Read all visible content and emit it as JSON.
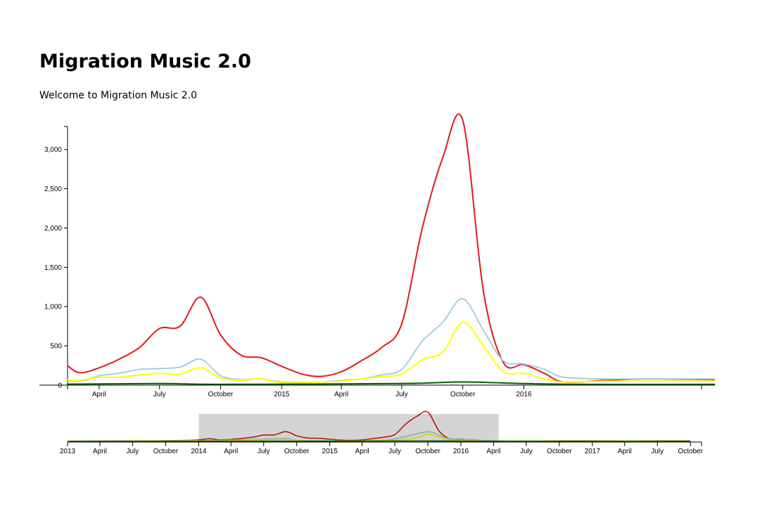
{
  "header": {
    "title": "Migration Music 2.0",
    "subtitle": "Welcome to Migration Music 2.0"
  },
  "chart_data": [
    {
      "type": "line",
      "x_start": "2014-01-01",
      "x_end": "2016-10-15",
      "ylim": [
        0,
        3400
      ],
      "y_ticks": [
        0,
        500,
        1000,
        1500,
        2000,
        2500,
        3000
      ],
      "x_ticks": [
        {
          "date": "2014-04-01",
          "label": "April"
        },
        {
          "date": "2014-07-01",
          "label": "July"
        },
        {
          "date": "2014-10-01",
          "label": "October"
        },
        {
          "date": "2015-01-01",
          "label": "2015"
        },
        {
          "date": "2015-04-01",
          "label": "April"
        },
        {
          "date": "2015-07-01",
          "label": "July"
        },
        {
          "date": "2015-10-01",
          "label": "October"
        },
        {
          "date": "2016-01-01",
          "label": "2016"
        }
      ],
      "series": [
        {
          "color": "#e31a1c",
          "points": [
            [
              "2014-01-01",
              170
            ],
            [
              "2014-01-31",
              300
            ],
            [
              "2014-03-01",
              160
            ],
            [
              "2014-04-01",
              220
            ],
            [
              "2014-05-01",
              330
            ],
            [
              "2014-06-01",
              480
            ],
            [
              "2014-07-01",
              720
            ],
            [
              "2014-08-01",
              750
            ],
            [
              "2014-09-01",
              1120
            ],
            [
              "2014-10-01",
              640
            ],
            [
              "2014-11-01",
              380
            ],
            [
              "2014-12-01",
              350
            ],
            [
              "2015-01-01",
              240
            ],
            [
              "2015-02-01",
              140
            ],
            [
              "2015-03-01",
              110
            ],
            [
              "2015-04-01",
              170
            ],
            [
              "2015-05-01",
              310
            ],
            [
              "2015-06-01",
              480
            ],
            [
              "2015-07-01",
              780
            ],
            [
              "2015-08-01",
              2000
            ],
            [
              "2015-09-01",
              2900
            ],
            [
              "2015-10-01",
              3370
            ],
            [
              "2015-11-01",
              1200
            ],
            [
              "2015-12-01",
              290
            ],
            [
              "2016-01-01",
              260
            ],
            [
              "2016-02-01",
              150
            ],
            [
              "2016-03-01",
              40
            ],
            [
              "2016-05-01",
              60
            ],
            [
              "2016-07-01",
              80
            ],
            [
              "2016-10-15",
              70
            ]
          ]
        },
        {
          "color": "#a6cee3",
          "points": [
            [
              "2014-01-01",
              80
            ],
            [
              "2014-03-01",
              50
            ],
            [
              "2014-04-01",
              120
            ],
            [
              "2014-05-01",
              150
            ],
            [
              "2014-06-01",
              200
            ],
            [
              "2014-07-01",
              210
            ],
            [
              "2014-08-01",
              230
            ],
            [
              "2014-09-01",
              330
            ],
            [
              "2014-10-01",
              120
            ],
            [
              "2014-11-01",
              70
            ],
            [
              "2014-12-01",
              80
            ],
            [
              "2015-01-01",
              40
            ],
            [
              "2015-03-01",
              40
            ],
            [
              "2015-04-01",
              60
            ],
            [
              "2015-05-01",
              80
            ],
            [
              "2015-06-01",
              130
            ],
            [
              "2015-07-01",
              200
            ],
            [
              "2015-08-01",
              560
            ],
            [
              "2015-09-01",
              800
            ],
            [
              "2015-10-01",
              1100
            ],
            [
              "2015-11-01",
              700
            ],
            [
              "2015-12-01",
              310
            ],
            [
              "2016-01-01",
              270
            ],
            [
              "2016-02-01",
              200
            ],
            [
              "2016-03-01",
              100
            ],
            [
              "2016-05-01",
              80
            ],
            [
              "2016-07-01",
              80
            ],
            [
              "2016-10-15",
              80
            ]
          ]
        },
        {
          "color": "#ffff00",
          "points": [
            [
              "2014-01-01",
              60
            ],
            [
              "2014-02-01",
              70
            ],
            [
              "2014-03-01",
              60
            ],
            [
              "2014-04-01",
              100
            ],
            [
              "2014-05-01",
              100
            ],
            [
              "2014-06-01",
              130
            ],
            [
              "2014-07-01",
              150
            ],
            [
              "2014-08-01",
              140
            ],
            [
              "2014-09-01",
              220
            ],
            [
              "2014-10-01",
              90
            ],
            [
              "2014-11-01",
              60
            ],
            [
              "2014-12-01",
              80
            ],
            [
              "2015-01-01",
              30
            ],
            [
              "2015-03-01",
              40
            ],
            [
              "2015-04-01",
              50
            ],
            [
              "2015-05-01",
              80
            ],
            [
              "2015-06-01",
              110
            ],
            [
              "2015-07-01",
              140
            ],
            [
              "2015-08-01",
              320
            ],
            [
              "2015-09-01",
              420
            ],
            [
              "2015-10-01",
              800
            ],
            [
              "2015-11-01",
              500
            ],
            [
              "2015-12-01",
              170
            ],
            [
              "2016-01-01",
              150
            ],
            [
              "2016-02-01",
              80
            ],
            [
              "2016-03-01",
              40
            ],
            [
              "2016-05-01",
              50
            ],
            [
              "2016-07-01",
              50
            ],
            [
              "2016-10-15",
              50
            ]
          ]
        },
        {
          "color": "#006400",
          "points": [
            [
              "2014-01-01",
              10
            ],
            [
              "2014-07-01",
              20
            ],
            [
              "2014-10-01",
              10
            ],
            [
              "2015-07-01",
              20
            ],
            [
              "2015-10-01",
              40
            ],
            [
              "2016-01-01",
              20
            ],
            [
              "2016-04-01",
              10
            ],
            [
              "2016-10-15",
              10
            ]
          ]
        }
      ]
    },
    {
      "type": "line",
      "x_start": "2013-01-01",
      "x_end": "2017-11-01",
      "ylim": [
        0,
        3400
      ],
      "brush_start": "2014-01-01",
      "brush_end": "2016-04-15",
      "x_ticks": [
        {
          "date": "2013-01-01",
          "label": "2013"
        },
        {
          "date": "2013-04-01",
          "label": "April"
        },
        {
          "date": "2013-07-01",
          "label": "July"
        },
        {
          "date": "2013-10-01",
          "label": "October"
        },
        {
          "date": "2014-01-01",
          "label": "2014"
        },
        {
          "date": "2014-04-01",
          "label": "April"
        },
        {
          "date": "2014-07-01",
          "label": "July"
        },
        {
          "date": "2014-10-01",
          "label": "October"
        },
        {
          "date": "2015-01-01",
          "label": "2015"
        },
        {
          "date": "2015-04-01",
          "label": "April"
        },
        {
          "date": "2015-07-01",
          "label": "July"
        },
        {
          "date": "2015-10-01",
          "label": "October"
        },
        {
          "date": "2016-01-01",
          "label": "2016"
        },
        {
          "date": "2016-04-01",
          "label": "April"
        },
        {
          "date": "2016-07-01",
          "label": "July"
        },
        {
          "date": "2016-10-01",
          "label": "October"
        },
        {
          "date": "2017-01-01",
          "label": "2017"
        },
        {
          "date": "2017-04-01",
          "label": "April"
        },
        {
          "date": "2017-07-01",
          "label": "July"
        },
        {
          "date": "2017-10-01",
          "label": "October"
        }
      ],
      "series": [
        {
          "color": "#e31a1c",
          "points": [
            [
              "2013-01-01",
              20
            ],
            [
              "2013-07-01",
              60
            ],
            [
              "2013-10-01",
              80
            ],
            [
              "2014-01-01",
              170
            ],
            [
              "2014-01-31",
              300
            ],
            [
              "2014-03-01",
              160
            ],
            [
              "2014-04-01",
              220
            ],
            [
              "2014-05-01",
              330
            ],
            [
              "2014-06-01",
              480
            ],
            [
              "2014-07-01",
              720
            ],
            [
              "2014-08-01",
              750
            ],
            [
              "2014-09-01",
              1120
            ],
            [
              "2014-10-01",
              640
            ],
            [
              "2014-11-01",
              380
            ],
            [
              "2014-12-01",
              350
            ],
            [
              "2015-01-01",
              240
            ],
            [
              "2015-02-01",
              140
            ],
            [
              "2015-03-01",
              110
            ],
            [
              "2015-04-01",
              170
            ],
            [
              "2015-05-01",
              310
            ],
            [
              "2015-06-01",
              480
            ],
            [
              "2015-07-01",
              780
            ],
            [
              "2015-08-01",
              2000
            ],
            [
              "2015-09-01",
              2900
            ],
            [
              "2015-10-01",
              3370
            ],
            [
              "2015-11-01",
              1200
            ],
            [
              "2015-12-01",
              290
            ],
            [
              "2016-01-01",
              260
            ],
            [
              "2016-02-01",
              150
            ],
            [
              "2016-03-01",
              40
            ],
            [
              "2016-05-01",
              60
            ],
            [
              "2016-07-01",
              60
            ],
            [
              "2016-10-01",
              70
            ],
            [
              "2017-01-01",
              80
            ],
            [
              "2017-04-01",
              60
            ],
            [
              "2017-07-01",
              80
            ],
            [
              "2017-10-01",
              80
            ]
          ]
        },
        {
          "color": "#a6cee3",
          "points": [
            [
              "2013-01-01",
              20
            ],
            [
              "2014-01-01",
              80
            ],
            [
              "2014-06-01",
              200
            ],
            [
              "2014-09-01",
              330
            ],
            [
              "2014-10-01",
              120
            ],
            [
              "2015-01-01",
              40
            ],
            [
              "2015-06-01",
              130
            ],
            [
              "2015-08-01",
              560
            ],
            [
              "2015-10-01",
              1100
            ],
            [
              "2015-11-01",
              700
            ],
            [
              "2015-12-01",
              310
            ],
            [
              "2016-02-01",
              200
            ],
            [
              "2016-04-01",
              80
            ],
            [
              "2016-10-01",
              60
            ],
            [
              "2017-10-01",
              60
            ]
          ]
        },
        {
          "color": "#ffff00",
          "points": [
            [
              "2013-01-01",
              10
            ],
            [
              "2014-01-01",
              60
            ],
            [
              "2014-06-01",
              130
            ],
            [
              "2014-09-01",
              220
            ],
            [
              "2014-10-01",
              90
            ],
            [
              "2015-01-01",
              30
            ],
            [
              "2015-07-01",
              140
            ],
            [
              "2015-09-01",
              420
            ],
            [
              "2015-10-01",
              800
            ],
            [
              "2015-11-01",
              500
            ],
            [
              "2015-12-01",
              170
            ],
            [
              "2016-02-01",
              80
            ],
            [
              "2016-04-01",
              40
            ],
            [
              "2016-10-01",
              40
            ],
            [
              "2017-10-01",
              40
            ]
          ]
        },
        {
          "color": "#006400",
          "points": [
            [
              "2013-01-01",
              5
            ],
            [
              "2014-07-01",
              20
            ],
            [
              "2015-10-01",
              40
            ],
            [
              "2016-04-01",
              10
            ],
            [
              "2017-10-01",
              10
            ]
          ]
        }
      ]
    }
  ]
}
